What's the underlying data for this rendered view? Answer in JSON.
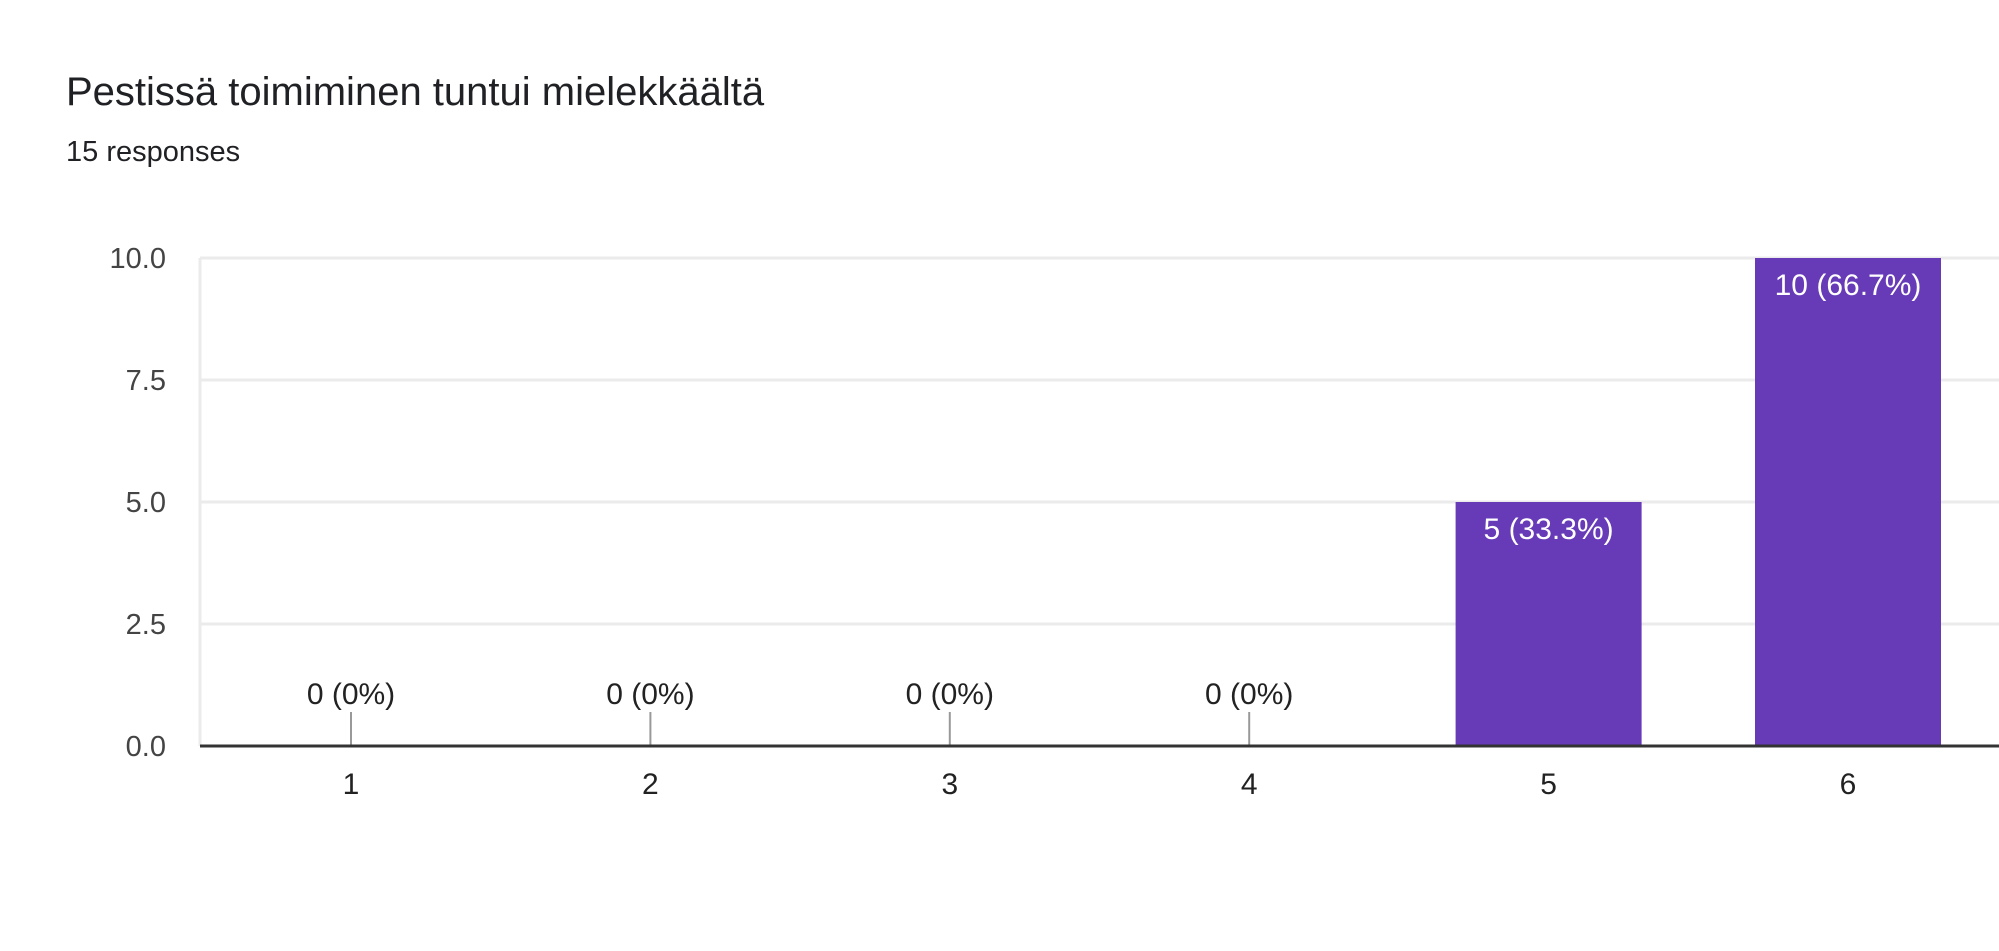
{
  "header": {
    "title": "Pestissä toimiminen tuntui mielekkäältä",
    "responses": "15 responses"
  },
  "colors": {
    "bar": "#673ab7",
    "grid": "#ebebeb",
    "axis": "#333333",
    "label_inside": "#ffffff",
    "label_outside": "#222222"
  },
  "chart_data": {
    "type": "bar",
    "title": "Pestissä toimiminen tuntui mielekkäältä",
    "subtitle": "15 responses",
    "categories": [
      "1",
      "2",
      "3",
      "4",
      "5",
      "6"
    ],
    "values": [
      0,
      0,
      0,
      0,
      5,
      10
    ],
    "data_labels": [
      "0 (0%)",
      "0 (0%)",
      "0 (0%)",
      "0 (0%)",
      "5 (33.3%)",
      "10 (66.7%)"
    ],
    "ylim": [
      0,
      10
    ],
    "yticks": [
      0,
      2.5,
      5,
      7.5,
      10
    ],
    "ytick_labels": [
      "0.0",
      "2.5",
      "5.0",
      "7.5",
      "10.0"
    ],
    "xlabel": "",
    "ylabel": "",
    "grid": true,
    "legend": "none"
  }
}
